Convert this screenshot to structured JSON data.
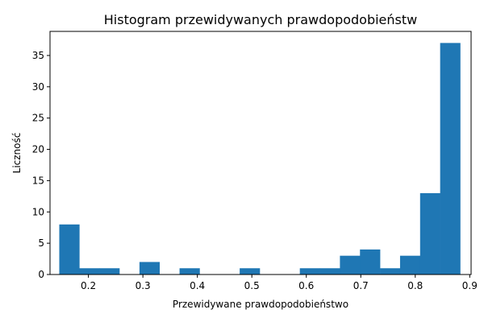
{
  "chart_data": {
    "type": "bar",
    "title": "Histogram przewidywanych prawdopodobieństw",
    "xlabel": "Przewidywane prawdopodobieństwo",
    "ylabel": "Liczność",
    "xlim": [
      0.1295,
      0.9025
    ],
    "ylim": [
      0,
      38.85
    ],
    "grid": false,
    "bin_edges": [
      0.1465,
      0.1833,
      0.2201,
      0.2569,
      0.2937,
      0.3305,
      0.3673,
      0.4041,
      0.4409,
      0.4777,
      0.5145,
      0.5513,
      0.5881,
      0.6249,
      0.6617,
      0.6985,
      0.7353,
      0.7721,
      0.8089,
      0.8457,
      0.8825
    ],
    "values": [
      8,
      1,
      1,
      0,
      2,
      0,
      1,
      0,
      0,
      1,
      0,
      0,
      1,
      1,
      3,
      4,
      1,
      3,
      13,
      37
    ],
    "xticks": [
      "0.2",
      "0.3",
      "0.4",
      "0.5",
      "0.6",
      "0.7",
      "0.8",
      "0.9"
    ],
    "xtick_values": [
      0.2,
      0.3,
      0.4,
      0.5,
      0.6,
      0.7,
      0.8,
      0.9
    ],
    "yticks": [
      "0",
      "5",
      "10",
      "15",
      "20",
      "25",
      "30",
      "35"
    ],
    "ytick_values": [
      0,
      5,
      10,
      15,
      20,
      25,
      30,
      35
    ],
    "bar_color": "#1f77b4"
  }
}
